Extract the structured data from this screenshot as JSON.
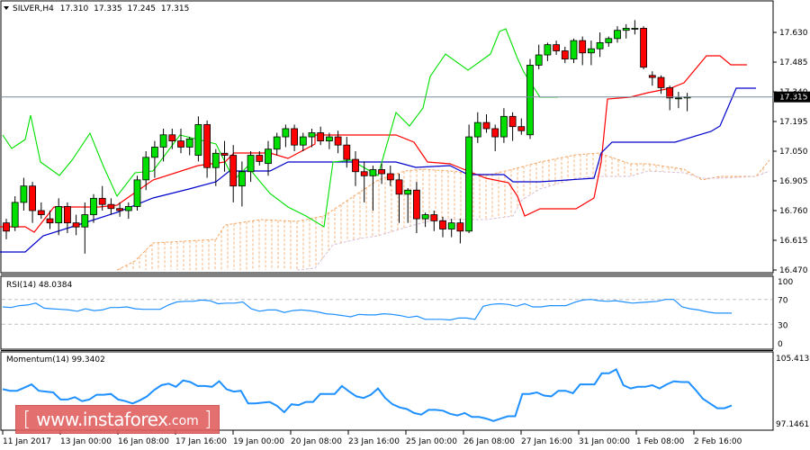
{
  "header": {
    "symbol": "SILVER,H4",
    "open": "17.310",
    "high": "17.335",
    "low": "17.245",
    "close": "17.315"
  },
  "watermark": {
    "bracket_left": "[",
    "text": "www.instaforex",
    "suffix": ".com",
    "bracket_right": "]"
  },
  "current_price_label": "17.315",
  "chart_data": [
    {
      "type": "candlestick",
      "title": "SILVER,H4 17.310 17.335 17.245 17.315",
      "ylim": [
        16.47,
        17.7
      ],
      "y_ticks": [
        "17.630",
        "17.485",
        "17.340",
        "17.195",
        "17.050",
        "16.905",
        "16.760",
        "16.615",
        "16.470"
      ],
      "x_ticks": [
        "11 Jan 2017",
        "13 Jan 00:00",
        "16 Jan 08:00",
        "17 Jan 16:00",
        "19 Jan 00:00",
        "20 Jan 08:00",
        "23 Jan 16:00",
        "25 Jan 00:00",
        "26 Jan 08:00",
        "27 Jan 16:00",
        "31 Jan 00:00",
        "1 Feb 08:00",
        "2 Feb 16:00"
      ],
      "current_price": 17.315,
      "overlays": [
        "Ichimoku Tenkan-sen (red)",
        "Ichimoku Kijun-sen (blue)",
        "Chikou Span (green)",
        "Kumo cloud (orange/plum dashed)"
      ],
      "candles": [
        [
          16.7,
          16.72,
          16.62,
          16.66
        ],
        [
          16.68,
          16.83,
          16.66,
          16.8
        ],
        [
          16.8,
          16.92,
          16.76,
          16.88
        ],
        [
          16.88,
          16.9,
          16.7,
          16.76
        ],
        [
          16.76,
          16.8,
          16.72,
          16.74
        ],
        [
          16.72,
          16.76,
          16.67,
          16.7
        ],
        [
          16.7,
          16.82,
          16.64,
          16.78
        ],
        [
          16.78,
          16.8,
          16.65,
          16.7
        ],
        [
          16.7,
          16.74,
          16.64,
          16.68
        ],
        [
          16.68,
          16.8,
          16.55,
          16.74
        ],
        [
          16.74,
          16.84,
          16.7,
          16.82
        ],
        [
          16.82,
          16.88,
          16.76,
          16.79
        ],
        [
          16.79,
          16.82,
          16.74,
          16.77
        ],
        [
          16.77,
          16.8,
          16.73,
          16.76
        ],
        [
          16.76,
          16.8,
          16.72,
          16.78
        ],
        [
          16.78,
          16.93,
          16.76,
          16.91
        ],
        [
          16.91,
          17.05,
          16.86,
          17.02
        ],
        [
          17.02,
          17.1,
          16.92,
          17.07
        ],
        [
          17.07,
          17.16,
          17.0,
          17.13
        ],
        [
          17.13,
          17.16,
          17.06,
          17.1
        ],
        [
          17.1,
          17.16,
          17.04,
          17.07
        ],
        [
          17.07,
          17.12,
          17.03,
          17.11
        ],
        [
          17.03,
          17.22,
          17.0,
          17.18
        ],
        [
          17.18,
          17.2,
          16.92,
          16.97
        ],
        [
          16.97,
          17.06,
          16.88,
          17.04
        ],
        [
          17.04,
          17.1,
          16.95,
          17.03
        ],
        [
          17.03,
          17.08,
          16.8,
          16.88
        ],
        [
          16.88,
          17.0,
          16.78,
          16.95
        ],
        [
          16.95,
          17.05,
          16.9,
          17.03
        ],
        [
          17.03,
          17.05,
          16.98,
          17.0
        ],
        [
          16.99,
          17.1,
          16.93,
          17.06
        ],
        [
          17.06,
          17.14,
          17.03,
          17.12
        ],
        [
          17.12,
          17.18,
          17.07,
          17.16
        ],
        [
          17.16,
          17.18,
          17.05,
          17.08
        ],
        [
          17.08,
          17.14,
          17.05,
          17.12
        ],
        [
          17.12,
          17.16,
          17.07,
          17.14
        ],
        [
          17.14,
          17.17,
          17.08,
          17.1
        ],
        [
          17.1,
          17.14,
          17.06,
          17.12
        ],
        [
          17.12,
          17.15,
          17.04,
          17.08
        ],
        [
          17.08,
          17.12,
          16.97,
          17.01
        ],
        [
          17.01,
          17.05,
          16.88,
          16.95
        ],
        [
          16.95,
          17.0,
          16.8,
          16.93
        ],
        [
          16.93,
          16.98,
          16.76,
          16.96
        ],
        [
          16.96,
          16.99,
          16.89,
          16.94
        ],
        [
          16.94,
          16.98,
          16.88,
          16.91
        ],
        [
          16.91,
          16.94,
          16.7,
          16.84
        ],
        [
          16.84,
          16.87,
          16.7,
          16.86
        ],
        [
          16.86,
          16.9,
          16.65,
          16.72
        ],
        [
          16.72,
          16.75,
          16.68,
          16.74
        ],
        [
          16.74,
          16.76,
          16.66,
          16.71
        ],
        [
          16.71,
          16.73,
          16.63,
          16.67
        ],
        [
          16.67,
          16.72,
          16.63,
          16.7
        ],
        [
          16.7,
          16.72,
          16.6,
          16.66
        ],
        [
          16.66,
          17.18,
          16.65,
          17.12
        ],
        [
          17.12,
          17.24,
          17.09,
          17.19
        ],
        [
          17.19,
          17.23,
          17.14,
          17.16
        ],
        [
          17.16,
          17.18,
          17.05,
          17.12
        ],
        [
          17.12,
          17.26,
          17.09,
          17.22
        ],
        [
          17.22,
          17.24,
          17.1,
          17.17
        ],
        [
          17.17,
          17.21,
          17.13,
          17.15
        ],
        [
          17.13,
          17.5,
          17.11,
          17.47
        ],
        [
          17.47,
          17.57,
          17.45,
          17.52
        ],
        [
          17.52,
          17.58,
          17.49,
          17.57
        ],
        [
          17.57,
          17.59,
          17.52,
          17.54
        ],
        [
          17.54,
          17.56,
          17.48,
          17.5
        ],
        [
          17.5,
          17.6,
          17.48,
          17.59
        ],
        [
          17.59,
          17.61,
          17.47,
          17.53
        ],
        [
          17.53,
          17.59,
          17.47,
          17.55
        ],
        [
          17.55,
          17.63,
          17.51,
          17.58
        ],
        [
          17.58,
          17.61,
          17.56,
          17.6
        ],
        [
          17.6,
          17.66,
          17.58,
          17.64
        ],
        [
          17.64,
          17.67,
          17.6,
          17.65
        ],
        [
          17.65,
          17.69,
          17.62,
          17.65
        ],
        [
          17.65,
          17.66,
          17.45,
          17.46
        ],
        [
          17.42,
          17.44,
          17.37,
          17.41
        ],
        [
          17.41,
          17.42,
          17.33,
          17.36
        ],
        [
          17.36,
          17.37,
          17.25,
          17.31
        ],
        [
          17.31,
          17.34,
          17.26,
          17.31
        ],
        [
          17.31,
          17.335,
          17.245,
          17.315
        ]
      ]
    },
    {
      "type": "line",
      "title": "RSI(14) 48.0384",
      "ylim": [
        0,
        100
      ],
      "y_ticks": [
        "100",
        "70",
        "30",
        "0"
      ],
      "levels": [
        70,
        30
      ],
      "series": [
        {
          "name": "RSI(14)",
          "color": "#1e90ff",
          "values": [
            58,
            57,
            60,
            61,
            64,
            56,
            55,
            54,
            53,
            51,
            55,
            52,
            53,
            57,
            57,
            58,
            55,
            54,
            54,
            54,
            61,
            66,
            67,
            67,
            69,
            68,
            63,
            64,
            64,
            66,
            55,
            51,
            53,
            53,
            49,
            52,
            53,
            52,
            50,
            47,
            46,
            44,
            42,
            46,
            45,
            45,
            47,
            46,
            44,
            41,
            43,
            38,
            38,
            38,
            37,
            40,
            40,
            38,
            59,
            62,
            63,
            62,
            59,
            63,
            58,
            58,
            60,
            60,
            60,
            65,
            69,
            70,
            68,
            67,
            68,
            66,
            64,
            65,
            66,
            67,
            70,
            70,
            58,
            55,
            53,
            50,
            48,
            48,
            48.0384
          ]
        }
      ]
    },
    {
      "type": "line",
      "title": "Momentum(14) 99.3402",
      "ylim": [
        97.1461,
        105.4133
      ],
      "y_ticks": [
        "105.4133",
        "97.1461"
      ],
      "series": [
        {
          "name": "Momentum(14)",
          "color": "#1e90ff",
          "values": [
            101.4,
            101.2,
            101.2,
            101.6,
            102.0,
            101.2,
            101.1,
            101.0,
            100.1,
            100.1,
            100.4,
            99.9,
            100.1,
            100.7,
            100.7,
            100.8,
            100.1,
            99.9,
            99.6,
            100.0,
            100.5,
            101.3,
            101.9,
            102.1,
            101.7,
            102.5,
            102.3,
            101.8,
            101.8,
            101.7,
            102.4,
            101.4,
            101.1,
            101.2,
            99.6,
            99.6,
            99.7,
            99.8,
            99.3,
            98.5,
            99.5,
            99.4,
            99.8,
            99.8,
            100.8,
            100.8,
            100.8,
            101.8,
            101.1,
            100.5,
            100.3,
            100.7,
            101.5,
            100.3,
            99.5,
            99.1,
            98.9,
            98.4,
            98.2,
            98.8,
            98.8,
            98.7,
            98.3,
            98.1,
            98.4,
            97.9,
            97.9,
            97.7,
            97.4,
            97.7,
            98.0,
            98.0,
            100.8,
            100.8,
            101.0,
            100.6,
            100.5,
            101.2,
            101.2,
            100.9,
            102.0,
            102.0,
            102.0,
            103.4,
            103.4,
            103.9,
            101.9,
            101.5,
            101.7,
            101.7,
            101.9,
            101.5,
            102.0,
            102.4,
            102.3,
            102.3,
            101.3,
            100.2,
            99.6,
            99.0,
            99.0,
            99.3402
          ]
        }
      ]
    }
  ],
  "colors": {
    "bull_candle": "#00e000",
    "bear_candle": "#ff0000",
    "tenkan": "#ff0000",
    "kijun": "#0000cc",
    "chikou": "#00e000",
    "kumo_a": "#f4a460",
    "kumo_b": "#d8bfd8",
    "indicator_line": "#1e90ff",
    "price_line": "#778899"
  }
}
